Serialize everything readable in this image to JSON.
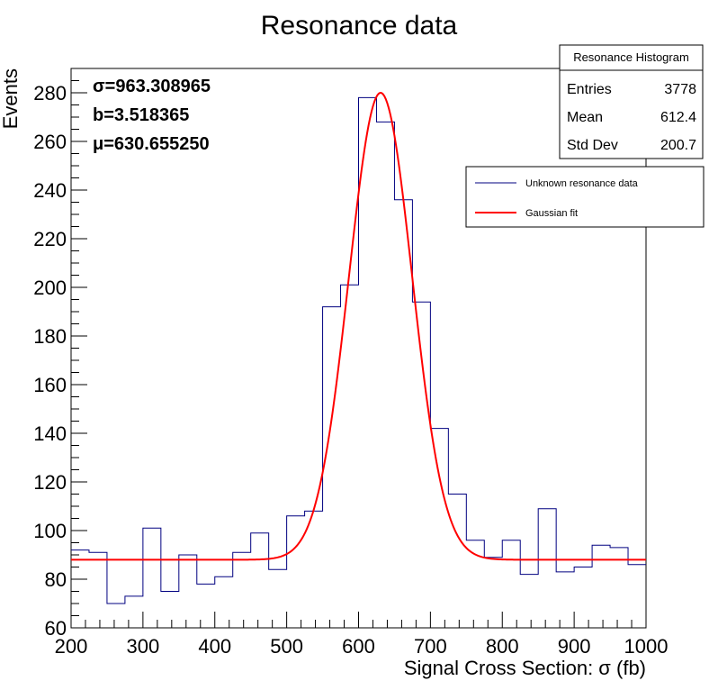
{
  "chart_data": {
    "type": "bar",
    "title": "Resonance data",
    "xlabel": "Signal Cross Section: σ (fb)",
    "ylabel": "Events",
    "xlim": [
      200,
      1000
    ],
    "ylim": [
      60,
      290
    ],
    "x_ticks": [
      "200",
      "300",
      "400",
      "500",
      "600",
      "700",
      "800",
      "900",
      "1000"
    ],
    "y_ticks": [
      "60",
      "80",
      "100",
      "120",
      "140",
      "160",
      "180",
      "200",
      "220",
      "240",
      "260",
      "280"
    ],
    "histogram": {
      "name": "Unknown resonance data",
      "color": "#000080",
      "bin_edges": [
        200,
        225,
        250,
        275,
        300,
        325,
        350,
        375,
        400,
        425,
        450,
        475,
        500,
        525,
        550,
        575,
        600,
        625,
        650,
        675,
        700,
        725,
        750,
        775,
        800,
        825,
        850,
        875,
        900,
        925,
        950,
        975,
        1000
      ],
      "counts": [
        92,
        91,
        70,
        73,
        101,
        75,
        90,
        78,
        81,
        91,
        99,
        84,
        106,
        108,
        192,
        201,
        278,
        268,
        236,
        194,
        142,
        115,
        96,
        89,
        96,
        82,
        109,
        83,
        85,
        94,
        93,
        86
      ]
    },
    "fit": {
      "name": "Gaussian fit",
      "color": "#ff0000",
      "model": "gaussian_plus_constant",
      "baseline": 88,
      "peak": 280,
      "mean": 630.65525,
      "sigma": 44
    },
    "fit_parameters": [
      "σ=963.308965",
      "b=3.518365",
      "μ=630.655250"
    ],
    "stats_box": {
      "title": "Resonance Histogram",
      "rows": [
        {
          "label": "Entries",
          "value": "3778"
        },
        {
          "label": "Mean",
          "value": "612.4"
        },
        {
          "label": "Std Dev",
          "value": "200.7"
        }
      ]
    },
    "legend": {
      "placement": "top-right",
      "entries": [
        {
          "label": "Unknown resonance data",
          "color": "#000080"
        },
        {
          "label": "Gaussian fit",
          "color": "#ff0000"
        }
      ]
    },
    "grid": false
  }
}
